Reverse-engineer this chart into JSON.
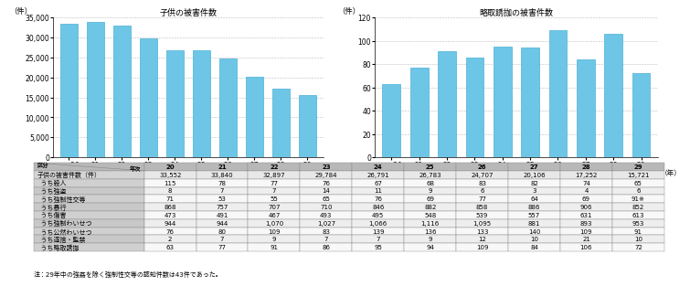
{
  "years": [
    "平成20",
    "21",
    "22",
    "23",
    "24",
    "25",
    "26",
    "27",
    "28",
    "29"
  ],
  "years_label": "（年）",
  "left_title": "子供の被害件数",
  "right_title": "略取誘拁の被害件数",
  "left_ylabel": "（件）",
  "right_ylabel": "（件）",
  "left_values": [
    33552,
    33840,
    32897,
    29784,
    26791,
    26783,
    24707,
    20106,
    17252,
    15721
  ],
  "right_values": [
    63,
    77,
    91,
    86,
    95,
    94,
    109,
    84,
    106,
    72
  ],
  "bar_color": "#6ec6e6",
  "bar_edge_color": "#4ab0d8",
  "left_ylim": [
    0,
    35000
  ],
  "left_yticks": [
    0,
    5000,
    10000,
    15000,
    20000,
    25000,
    30000,
    35000
  ],
  "right_ylim": [
    0,
    120
  ],
  "right_yticks": [
    0,
    20,
    40,
    60,
    80,
    100,
    120
  ],
  "table_years": [
    "20",
    "21",
    "22",
    "23",
    "24",
    "25",
    "26",
    "27",
    "28",
    "29"
  ],
  "col_header": [
    "区分",
    "年次",
    "20",
    "21",
    "22",
    "23",
    "24",
    "25",
    "26",
    "27",
    "28",
    "29"
  ],
  "table_rows": [
    [
      "子供の被害件数（件）",
      "33,552",
      "33,840",
      "32,897",
      "29,784",
      "26,791",
      "26,783",
      "24,707",
      "20,106",
      "17,252",
      "15,721"
    ],
    [
      "うち殺人",
      "115",
      "78",
      "77",
      "76",
      "67",
      "68",
      "83",
      "82",
      "74",
      "65"
    ],
    [
      "うち強盗",
      "8",
      "7",
      "7",
      "14",
      "11",
      "9",
      "6",
      "3",
      "4",
      "6"
    ],
    [
      "うち強制性交等",
      "71",
      "53",
      "55",
      "65",
      "76",
      "69",
      "77",
      "64",
      "69",
      "91※"
    ],
    [
      "うち暴行",
      "868",
      "757",
      "707",
      "710",
      "846",
      "882",
      "858",
      "886",
      "906",
      "852"
    ],
    [
      "うち傷害",
      "473",
      "491",
      "467",
      "493",
      "495",
      "548",
      "539",
      "557",
      "631",
      "613"
    ],
    [
      "うち強制わいせつ",
      "944",
      "944",
      "1,070",
      "1,027",
      "1,066",
      "1,116",
      "1,095",
      "881",
      "893",
      "953"
    ],
    [
      "うち公然わいせつ",
      "76",
      "80",
      "109",
      "83",
      "139",
      "136",
      "133",
      "140",
      "109",
      "91"
    ],
    [
      "うち逐捨・監禁",
      "2",
      "7",
      "9",
      "7",
      "7",
      "9",
      "12",
      "10",
      "21",
      "10"
    ],
    [
      "うち略取誘拁",
      "63",
      "77",
      "91",
      "86",
      "95",
      "94",
      "109",
      "84",
      "106",
      "72"
    ]
  ],
  "note": "注：29年中の強姦を除く強制性交等の認知件数は43件であった。",
  "bg_color": "#ffffff",
  "grid_color": "#bbbbbb",
  "table_header_bg": "#b8b8b8",
  "table_row0_bg": "#d4d4d4",
  "table_odd_left": "#d0d0d0",
  "table_even_left": "#c8c8c8",
  "table_odd_data": "#f8f8f8",
  "table_even_data": "#eeeeee"
}
